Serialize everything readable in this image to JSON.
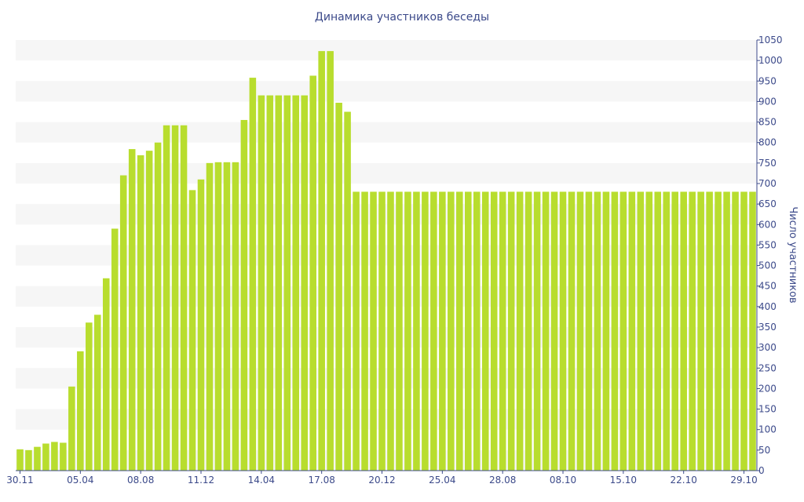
{
  "chart_data": {
    "type": "bar",
    "title": "Динамика участников беседы",
    "xlabel": "",
    "ylabel": "Число участников",
    "ylim": [
      0,
      1050
    ],
    "y_ticks": [
      0,
      50,
      100,
      150,
      200,
      250,
      300,
      350,
      400,
      450,
      500,
      550,
      600,
      650,
      700,
      750,
      800,
      850,
      900,
      950,
      1000,
      1050
    ],
    "x_tick_labels": [
      {
        "index": 0,
        "label": "30.11"
      },
      {
        "index": 7,
        "label": "05.04"
      },
      {
        "index": 14,
        "label": "08.08"
      },
      {
        "index": 21,
        "label": "11.12"
      },
      {
        "index": 28,
        "label": "14.04"
      },
      {
        "index": 35,
        "label": "17.08"
      },
      {
        "index": 42,
        "label": "20.12"
      },
      {
        "index": 49,
        "label": "25.04"
      },
      {
        "index": 56,
        "label": "28.08"
      },
      {
        "index": 63,
        "label": "08.10"
      },
      {
        "index": 70,
        "label": "15.10"
      },
      {
        "index": 77,
        "label": "22.10"
      },
      {
        "index": 84,
        "label": "29.10"
      }
    ],
    "values": [
      52,
      50,
      58,
      66,
      70,
      68,
      205,
      291,
      361,
      380,
      469,
      590,
      720,
      784,
      769,
      780,
      800,
      842,
      842,
      842,
      684,
      710,
      750,
      752,
      752,
      752,
      855,
      958,
      915,
      915,
      915,
      915,
      915,
      915,
      963,
      1023,
      1023,
      897,
      875,
      680,
      680,
      680,
      680,
      680,
      680,
      680,
      680,
      680,
      680,
      680,
      680,
      680,
      680,
      680,
      680,
      680,
      680,
      680,
      680,
      680,
      680,
      680,
      680,
      680,
      680,
      680,
      680,
      680,
      680,
      680,
      680,
      680,
      680,
      680,
      680,
      680,
      680,
      680,
      680,
      680,
      680,
      680,
      680,
      680,
      680,
      680
    ],
    "grid": "alternating horizontal bands",
    "y_axis_position": "right",
    "colors": {
      "bar": "#b8dd2e",
      "band": "#f6f6f6",
      "text": "#3c4a8a",
      "axis": "#3c4a8a"
    }
  }
}
